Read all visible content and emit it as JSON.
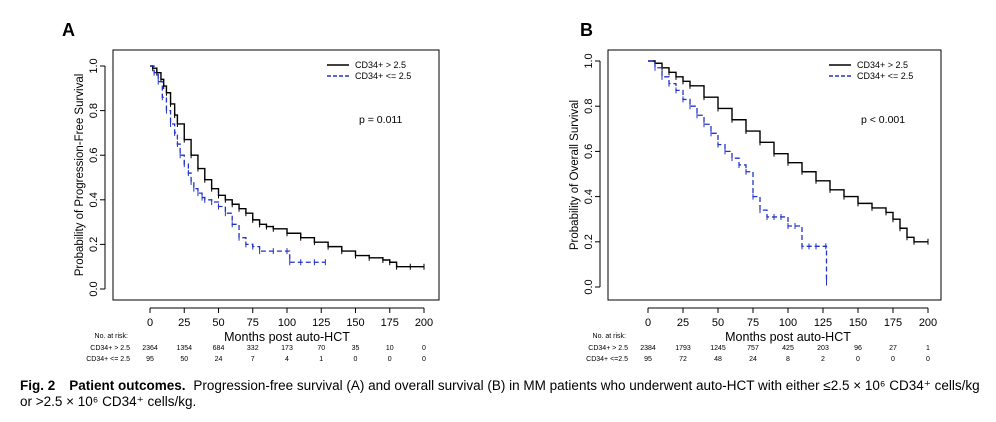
{
  "chart_data": [
    {
      "type": "line",
      "panel_label": "A",
      "xlabel": "Months post auto-HCT",
      "ylabel": "Probability of Progression-Free Survival",
      "xlim": [
        0,
        200
      ],
      "ylim": [
        0,
        1
      ],
      "x_ticks": [
        "0",
        "25",
        "50",
        "75",
        "100",
        "125",
        "150",
        "175",
        "200"
      ],
      "y_ticks": [
        "0.0",
        "0.2",
        "0.4",
        "0.6",
        "0.8",
        "1.0"
      ],
      "legend": {
        "position": "top-right",
        "items": [
          "CD34+ > 2.5",
          "CD34+ <= 2.5"
        ]
      },
      "annotation": "p = 0.011",
      "series": [
        {
          "name": "CD34+ > 2.5",
          "color": "#000000",
          "dash": "solid",
          "x": [
            0,
            2,
            5,
            8,
            10,
            12,
            15,
            18,
            20,
            25,
            30,
            35,
            40,
            45,
            50,
            55,
            60,
            65,
            70,
            75,
            80,
            85,
            90,
            100,
            110,
            120,
            130,
            140,
            150,
            160,
            170,
            175,
            180,
            190,
            200
          ],
          "y": [
            1.0,
            0.99,
            0.97,
            0.94,
            0.91,
            0.88,
            0.83,
            0.78,
            0.74,
            0.67,
            0.6,
            0.54,
            0.49,
            0.45,
            0.42,
            0.4,
            0.38,
            0.36,
            0.34,
            0.31,
            0.29,
            0.28,
            0.27,
            0.25,
            0.23,
            0.21,
            0.19,
            0.17,
            0.15,
            0.14,
            0.13,
            0.12,
            0.1,
            0.1,
            0.1
          ]
        },
        {
          "name": "CD34+ <= 2.5",
          "color": "#2233cc",
          "dash": "dashed",
          "x": [
            0,
            3,
            6,
            9,
            12,
            15,
            18,
            20,
            22,
            25,
            28,
            30,
            32,
            35,
            38,
            40,
            45,
            50,
            55,
            60,
            65,
            70,
            75,
            80,
            90,
            100,
            102,
            110,
            120,
            128
          ],
          "y": [
            1.0,
            0.97,
            0.93,
            0.86,
            0.8,
            0.74,
            0.7,
            0.65,
            0.6,
            0.56,
            0.52,
            0.48,
            0.45,
            0.43,
            0.41,
            0.4,
            0.39,
            0.37,
            0.34,
            0.29,
            0.23,
            0.2,
            0.19,
            0.17,
            0.17,
            0.17,
            0.12,
            0.12,
            0.12,
            0.12
          ]
        }
      ]
    },
    {
      "type": "line",
      "panel_label": "B",
      "xlabel": "Months post auto-HCT",
      "ylabel": "Probability of Overall Survival",
      "xlim": [
        0,
        200
      ],
      "ylim": [
        0,
        1
      ],
      "x_ticks": [
        "0",
        "25",
        "50",
        "75",
        "100",
        "125",
        "150",
        "175",
        "200"
      ],
      "y_ticks": [
        "0.0",
        "0.2",
        "0.4",
        "0.6",
        "0.8",
        "1.0"
      ],
      "legend": {
        "position": "top-right",
        "items": [
          "CD34+ > 2.5",
          "CD34+ <= 2.5"
        ]
      },
      "annotation": "p < 0.001",
      "series": [
        {
          "name": "CD34+ > 2.5",
          "color": "#000000",
          "dash": "solid",
          "x": [
            0,
            5,
            10,
            15,
            20,
            25,
            30,
            40,
            50,
            60,
            70,
            80,
            90,
            100,
            110,
            120,
            130,
            140,
            150,
            160,
            170,
            175,
            180,
            185,
            190,
            200
          ],
          "y": [
            1.0,
            0.99,
            0.97,
            0.95,
            0.93,
            0.91,
            0.89,
            0.84,
            0.79,
            0.74,
            0.69,
            0.64,
            0.59,
            0.55,
            0.51,
            0.47,
            0.43,
            0.4,
            0.37,
            0.35,
            0.33,
            0.3,
            0.26,
            0.22,
            0.2,
            0.2
          ]
        },
        {
          "name": "CD34+ <= 2.5",
          "color": "#2233cc",
          "dash": "dashed",
          "x": [
            0,
            5,
            10,
            15,
            20,
            25,
            30,
            35,
            40,
            45,
            50,
            55,
            60,
            65,
            70,
            75,
            80,
            85,
            90,
            95,
            100,
            105,
            110,
            115,
            120,
            127,
            127.5
          ],
          "y": [
            1.0,
            0.97,
            0.93,
            0.9,
            0.87,
            0.83,
            0.8,
            0.76,
            0.72,
            0.68,
            0.63,
            0.6,
            0.57,
            0.54,
            0.51,
            0.4,
            0.34,
            0.31,
            0.31,
            0.31,
            0.27,
            0.27,
            0.18,
            0.18,
            0.18,
            0.18,
            0.02
          ]
        }
      ]
    }
  ],
  "panels": [
    {
      "label": "A",
      "risk_title": "No. at risk:",
      "risk_rows": [
        {
          "name": "CD34+ > 2.5",
          "values": [
            "2364",
            "1354",
            "684",
            "332",
            "173",
            "70",
            "35",
            "10",
            "0"
          ]
        },
        {
          "name": "CD34+ <= 2.5",
          "values": [
            "95",
            "50",
            "24",
            "7",
            "4",
            "1",
            "0",
            "0",
            "0"
          ]
        }
      ]
    },
    {
      "label": "B",
      "risk_title": "No. at risk:",
      "risk_rows": [
        {
          "name": "CD34+ > 2.5",
          "values": [
            "2384",
            "1793",
            "1245",
            "757",
            "425",
            "203",
            "96",
            "27",
            "1"
          ]
        },
        {
          "name": "CD34+ <=2.5",
          "values": [
            "95",
            "72",
            "48",
            "24",
            "8",
            "2",
            "0",
            "0",
            "0"
          ]
        }
      ]
    }
  ],
  "caption": {
    "fig_label": "Fig. 2",
    "title": "Patient outcomes.",
    "text": "Progression-free survival (A) and overall survival (B) in MM patients who underwent auto-HCT with either ≤2.5 × 10⁶ CD34⁺ cells/kg or >2.5 × 10⁶ CD34⁺ cells/kg."
  }
}
